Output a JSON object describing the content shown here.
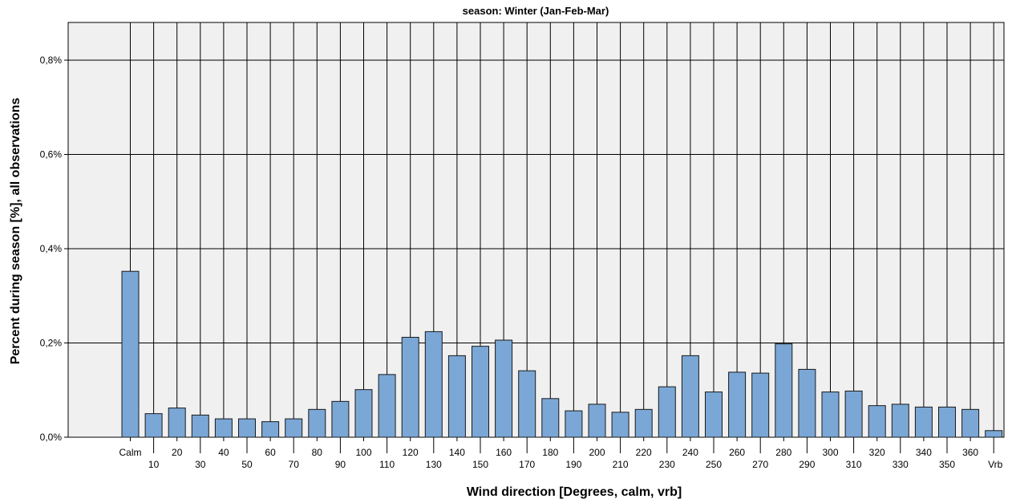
{
  "chart_data": {
    "type": "bar",
    "title": "season: Winter (Jan-Feb-Mar)",
    "xlabel": "Wind direction [Degrees, calm, vrb]",
    "ylabel": "Percent during season [%], all observations",
    "categories": [
      "Calm",
      "10",
      "20",
      "30",
      "40",
      "50",
      "60",
      "70",
      "80",
      "90",
      "100",
      "110",
      "120",
      "130",
      "140",
      "150",
      "160",
      "170",
      "180",
      "190",
      "200",
      "210",
      "220",
      "230",
      "240",
      "250",
      "260",
      "270",
      "280",
      "290",
      "300",
      "310",
      "320",
      "330",
      "340",
      "350",
      "360",
      "Vrb"
    ],
    "values": [
      0.352,
      0.05,
      0.062,
      0.047,
      0.039,
      0.039,
      0.033,
      0.039,
      0.059,
      0.076,
      0.101,
      0.133,
      0.212,
      0.224,
      0.173,
      0.193,
      0.206,
      0.141,
      0.082,
      0.056,
      0.07,
      0.053,
      0.059,
      0.107,
      0.173,
      0.096,
      0.138,
      0.136,
      0.198,
      0.144,
      0.096,
      0.098,
      0.067,
      0.07,
      0.064,
      0.064,
      0.059,
      0.014
    ],
    "ylim": [
      0,
      0.88
    ],
    "yticks": [
      {
        "value": 0.0,
        "label": "0,0%"
      },
      {
        "value": 0.2,
        "label": "0,2%"
      },
      {
        "value": 0.4,
        "label": "0,4%"
      },
      {
        "value": 0.6,
        "label": "0,6%"
      },
      {
        "value": 0.8,
        "label": "0,8%"
      }
    ],
    "grid": true,
    "colors": {
      "bar_fill": "#7aa7d6",
      "bar_stroke": "#1a1a1a",
      "plot_bg": "#f0f0f0",
      "grid": "#000000"
    }
  }
}
